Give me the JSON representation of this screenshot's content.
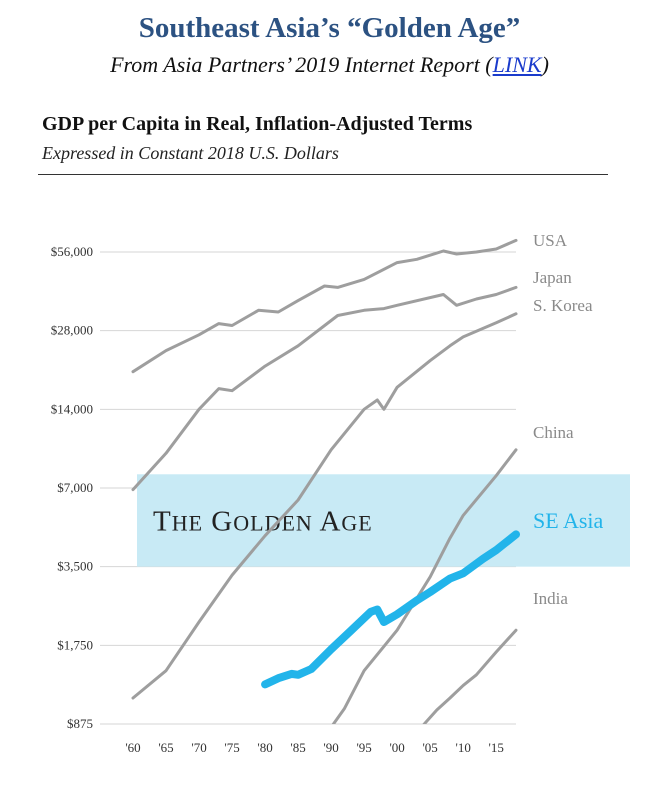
{
  "header": {
    "title": "Southeast Asia’s “Golden Age”",
    "subtitle_prefix": "From Asia Partners’ 2019 Internet Report (",
    "subtitle_link": "LINK",
    "subtitle_suffix": ")"
  },
  "chart_data": {
    "type": "line",
    "title": "GDP per Capita in Real, Inflation-Adjusted Terms",
    "subtitle": "Expressed in Constant 2018 U.S. Dollars",
    "xlabel": "",
    "ylabel": "",
    "y_scale": "log2",
    "ylim": [
      875,
      56000
    ],
    "xlim": [
      1960,
      2018
    ],
    "y_ticks": [
      875,
      1750,
      3500,
      7000,
      14000,
      28000,
      56000
    ],
    "y_tick_labels": [
      "$875",
      "$1,750",
      "$3,500",
      "$7,000",
      "$14,000",
      "$28,000",
      "$56,000"
    ],
    "x_ticks": [
      1960,
      1965,
      1970,
      1975,
      1980,
      1985,
      1990,
      1995,
      2000,
      2005,
      2010,
      2015
    ],
    "x_tick_labels": [
      "'60",
      "'65",
      "'70",
      "'75",
      "'80",
      "'85",
      "'90",
      "'95",
      "'00",
      "'05",
      "'10",
      "'15"
    ],
    "grid": true,
    "band": {
      "label": "THE GOLDEN AGE",
      "ymin": 3500,
      "ymax": 7900,
      "color": "#c8eaf5"
    },
    "series": [
      {
        "name": "USA",
        "color": "#9e9e9e",
        "x": [
          1960,
          1965,
          1970,
          1973,
          1975,
          1979,
          1982,
          1985,
          1989,
          1991,
          1995,
          2000,
          2003,
          2007,
          2009,
          2012,
          2015,
          2018
        ],
        "y": [
          19500,
          23500,
          27000,
          29800,
          29300,
          33500,
          33000,
          36500,
          41500,
          41000,
          44000,
          51000,
          52500,
          56500,
          55000,
          56000,
          57500,
          62000
        ]
      },
      {
        "name": "Japan",
        "color": "#9e9e9e",
        "x": [
          1960,
          1965,
          1970,
          1973,
          1975,
          1980,
          1985,
          1991,
          1995,
          1998,
          2000,
          2007,
          2009,
          2012,
          2015,
          2018
        ],
        "y": [
          6900,
          9500,
          14000,
          16800,
          16500,
          20500,
          24500,
          32000,
          33500,
          34000,
          35000,
          38500,
          35000,
          37000,
          38500,
          41000
        ]
      },
      {
        "name": "S. Korea",
        "color": "#9e9e9e",
        "x": [
          1960,
          1965,
          1970,
          1975,
          1980,
          1985,
          1990,
          1995,
          1997,
          1998,
          2000,
          2005,
          2008,
          2010,
          2015,
          2018
        ],
        "y": [
          1100,
          1400,
          2150,
          3250,
          4600,
          6300,
          9800,
          14000,
          15200,
          14000,
          17000,
          21500,
          24500,
          26500,
          30000,
          32500
        ]
      },
      {
        "name": "China",
        "color": "#9e9e9e",
        "x": [
          1990,
          1992,
          1995,
          2000,
          2005,
          2008,
          2010,
          2015,
          2018
        ],
        "y": [
          850,
          1000,
          1400,
          2000,
          3200,
          4500,
          5500,
          7800,
          9800
        ]
      },
      {
        "name": "SE Asia",
        "color": "#22b4ea",
        "x": [
          1980,
          1982,
          1984,
          1985,
          1987,
          1990,
          1993,
          1996,
          1997,
          1998,
          2000,
          2003,
          2005,
          2008,
          2010,
          2013,
          2015,
          2018
        ],
        "y": [
          1240,
          1310,
          1360,
          1350,
          1420,
          1690,
          1990,
          2350,
          2400,
          2150,
          2300,
          2600,
          2800,
          3150,
          3300,
          3750,
          4050,
          4650
        ]
      },
      {
        "name": "India",
        "color": "#9e9e9e",
        "x": [
          2004,
          2006,
          2008,
          2010,
          2012,
          2015,
          2018
        ],
        "y": [
          870,
          990,
          1100,
          1230,
          1350,
          1650,
          2000
        ]
      }
    ]
  }
}
